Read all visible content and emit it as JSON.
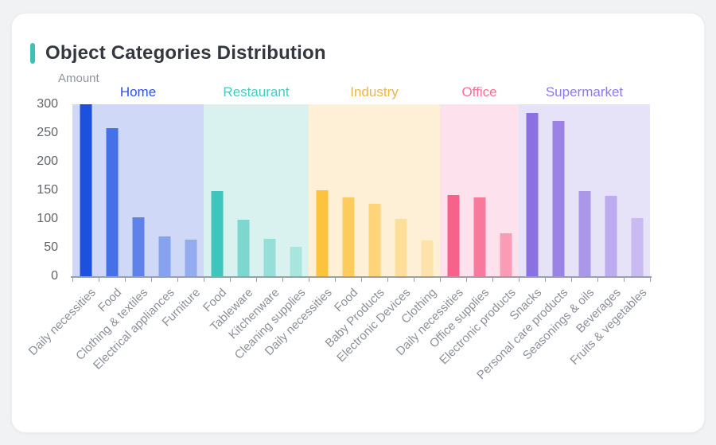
{
  "header": {
    "title": "Object Categories Distribution",
    "accent_color": "#3fc0b5"
  },
  "chart_data": {
    "type": "bar",
    "title": "Object Categories Distribution",
    "ylabel": "Amount",
    "xlabel": "",
    "ylim": [
      0,
      300
    ],
    "yticks": [
      0,
      50,
      100,
      150,
      200,
      250,
      300
    ],
    "grid": false,
    "legend_position": "top-inline-group-labels",
    "groups": [
      {
        "name": "Home",
        "label_color": "#2b50e8",
        "band_color": "#cfd9f7",
        "bars": [
          {
            "category": "Daily necessities",
            "value": 300,
            "color": "#1e50de"
          },
          {
            "category": "Food",
            "value": 258,
            "color": "#4570e7"
          },
          {
            "category": "Clothing & textiles",
            "value": 103,
            "color": "#5f82ea"
          },
          {
            "category": "Electrical appliances",
            "value": 69,
            "color": "#87a2ef"
          },
          {
            "category": "Furniture",
            "value": 64,
            "color": "#93abef"
          }
        ]
      },
      {
        "name": "Restaurant",
        "label_color": "#41cdc2",
        "band_color": "#d9f2f0",
        "bars": [
          {
            "category": "Food",
            "value": 149,
            "color": "#3ec6bc"
          },
          {
            "category": "Tableware",
            "value": 98,
            "color": "#7ed7cf"
          },
          {
            "category": "Kitchenware",
            "value": 65,
            "color": "#96ded8"
          },
          {
            "category": "Cleaning supplies",
            "value": 51,
            "color": "#a9e5df"
          }
        ]
      },
      {
        "name": "Industry",
        "label_color": "#eab645",
        "band_color": "#fdf0d6",
        "bars": [
          {
            "category": "Daily necessities",
            "value": 150,
            "color": "#fec33c"
          },
          {
            "category": "Food",
            "value": 138,
            "color": "#fdcc5d"
          },
          {
            "category": "Baby Products",
            "value": 126,
            "color": "#fdd478"
          },
          {
            "category": "Electronic Devices",
            "value": 100,
            "color": "#fddf9a"
          },
          {
            "category": "Clothing",
            "value": 63,
            "color": "#fde3ab"
          }
        ]
      },
      {
        "name": "Office",
        "label_color": "#f76f96",
        "band_color": "#fde1ec",
        "bars": [
          {
            "category": "Daily necessities",
            "value": 142,
            "color": "#f7628b"
          },
          {
            "category": "Office supplies",
            "value": 138,
            "color": "#f8799c"
          },
          {
            "category": "Electronic products",
            "value": 75,
            "color": "#fa9cb5"
          }
        ]
      },
      {
        "name": "Supermarket",
        "label_color": "#8d79e8",
        "band_color": "#e6e2f8",
        "bars": [
          {
            "category": "Snacks",
            "value": 285,
            "color": "#8a70e0"
          },
          {
            "category": "Personal care products",
            "value": 271,
            "color": "#9a83e4"
          },
          {
            "category": "Seasonings & oils",
            "value": 148,
            "color": "#ab97e9"
          },
          {
            "category": "Beverages",
            "value": 140,
            "color": "#bcabee"
          },
          {
            "category": "Fruits & vegetables",
            "value": 101,
            "color": "#c9bbf1"
          }
        ]
      }
    ]
  }
}
